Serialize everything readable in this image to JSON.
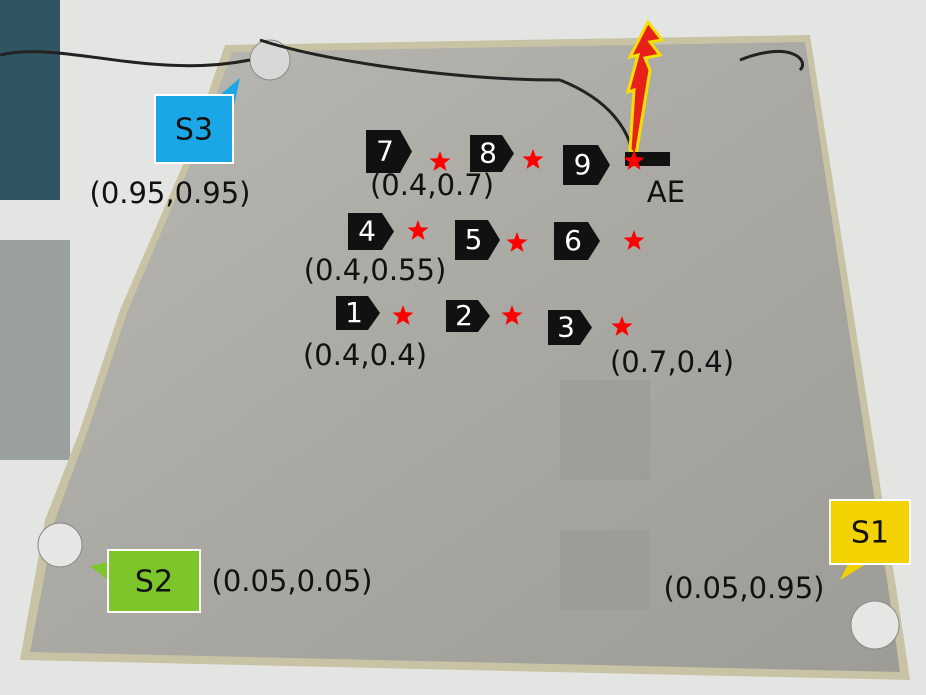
{
  "points": [
    {
      "label": "1"
    },
    {
      "label": "2"
    },
    {
      "label": "3"
    },
    {
      "label": "4"
    },
    {
      "label": "5"
    },
    {
      "label": "6"
    },
    {
      "label": "7"
    },
    {
      "label": "8"
    },
    {
      "label": "9"
    }
  ],
  "coord_labels": [
    "(0.4,0.4)",
    "(0.4,0.55)",
    "(0.4,0.7)",
    "(0.7,0.4)"
  ],
  "sensors": [
    {
      "label": "S1",
      "coords": "(0.05,0.95)"
    },
    {
      "label": "S2",
      "coords": "(0.05,0.05)"
    },
    {
      "label": "S3",
      "coords": "(0.95,0.95)"
    }
  ],
  "source": "AE"
}
